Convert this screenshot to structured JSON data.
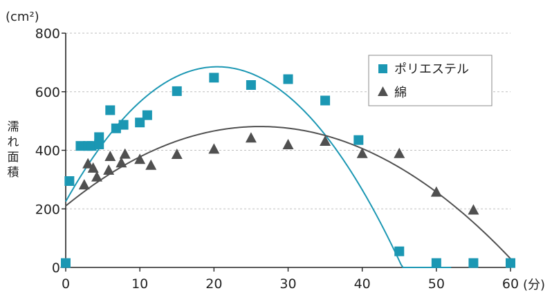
{
  "chart_data": {
    "type": "scatter",
    "xlabel": "(分)",
    "ylabel": "濡れ面積",
    "y_unit": "(cm²)",
    "xlim": [
      0,
      60
    ],
    "ylim": [
      0,
      800
    ],
    "x_ticks": [
      0,
      10,
      20,
      30,
      40,
      50,
      60
    ],
    "y_ticks": [
      0,
      200,
      400,
      600,
      800
    ],
    "grid": "horizontal dashed",
    "legend_position": "top-right",
    "series": [
      {
        "name": "ポリエステル",
        "marker": "square",
        "color": "#1b97b3",
        "points": [
          [
            0,
            15
          ],
          [
            0.5,
            295
          ],
          [
            2,
            415
          ],
          [
            3,
            415
          ],
          [
            3.5,
            415
          ],
          [
            4.5,
            445
          ],
          [
            4.5,
            420
          ],
          [
            6,
            537
          ],
          [
            6.8,
            475
          ],
          [
            7.8,
            487
          ],
          [
            10,
            495
          ],
          [
            11,
            520
          ],
          [
            15,
            602
          ],
          [
            20,
            648
          ],
          [
            25,
            623
          ],
          [
            30,
            643
          ],
          [
            35,
            570
          ],
          [
            39.5,
            435
          ],
          [
            45,
            55
          ],
          [
            50,
            15
          ],
          [
            55,
            15
          ],
          [
            60,
            15
          ]
        ],
        "trend": {
          "type": "polynomial",
          "coefficients": [
            225,
            45,
            -1.1
          ],
          "x_range": [
            0,
            52
          ]
        }
      },
      {
        "name": "綿",
        "marker": "triangle",
        "color": "#505050",
        "points": [
          [
            0,
            15
          ],
          [
            2.5,
            283
          ],
          [
            3,
            355
          ],
          [
            3.7,
            340
          ],
          [
            4.2,
            310
          ],
          [
            5.8,
            333
          ],
          [
            6,
            380
          ],
          [
            7.5,
            358
          ],
          [
            8,
            388
          ],
          [
            10,
            370
          ],
          [
            11.5,
            350
          ],
          [
            15,
            387
          ],
          [
            20,
            405
          ],
          [
            25,
            443
          ],
          [
            30,
            420
          ],
          [
            35,
            432
          ],
          [
            40,
            390
          ],
          [
            45,
            390
          ],
          [
            50,
            258
          ],
          [
            55,
            197
          ]
        ],
        "trend": {
          "type": "polynomial",
          "coefficients": [
            210,
            20.7,
            -0.395
          ],
          "x_range": [
            0,
            60
          ]
        }
      }
    ]
  }
}
